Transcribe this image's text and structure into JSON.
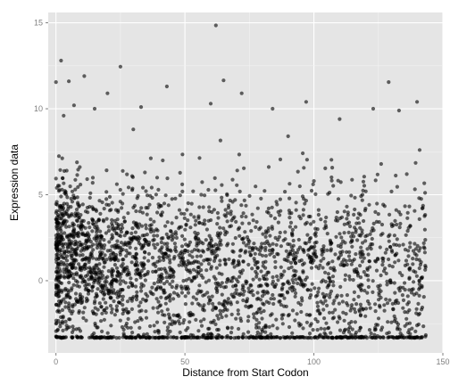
{
  "chart_data": {
    "type": "scatter",
    "xlabel": "Distance from Start Codon",
    "ylabel": "Expression data",
    "xlim": [
      -3,
      150
    ],
    "ylim": [
      -4.2,
      15.6
    ],
    "x_ticks": [
      0,
      50,
      100,
      150
    ],
    "x_tick_labels": [
      "0",
      "50",
      "100",
      "150"
    ],
    "y_ticks": [
      0,
      5,
      10,
      15
    ],
    "y_tick_labels": [
      "0",
      "5",
      "10",
      "15"
    ],
    "grid": true,
    "legend": "none",
    "colors": {
      "panel": "#e5e5e5",
      "grid": "#ffffff",
      "point": "#000000"
    },
    "point_alpha": 0.6,
    "series": [
      {
        "distribution": "dense cloud, densest for distance 0–35, thinning toward 143",
        "points": [
          [
            62,
            14.85
          ],
          [
            2,
            12.8
          ],
          [
            25,
            12.45
          ],
          [
            0,
            11.55
          ],
          [
            5,
            11.6
          ],
          [
            11,
            11.9
          ],
          [
            65,
            11.65
          ],
          [
            129,
            11.55
          ],
          [
            43,
            11.3
          ],
          [
            20,
            10.9
          ],
          [
            72,
            10.9
          ],
          [
            97,
            10.4
          ],
          [
            140,
            10.4
          ],
          [
            7,
            10.2
          ],
          [
            15,
            10.0
          ],
          [
            33,
            10.1
          ],
          [
            60,
            10.3
          ],
          [
            84,
            10.0
          ],
          [
            123,
            10.0
          ],
          [
            133,
            9.9
          ],
          [
            3,
            9.6
          ],
          [
            110,
            9.4
          ],
          [
            30,
            8.8
          ],
          [
            90,
            8.4
          ],
          [
            141,
            7.6
          ],
          [
            136,
            6.2
          ],
          [
            100,
            5.8
          ],
          [
            142,
            4.2
          ],
          [
            142,
            0.2
          ],
          [
            140,
            -2.6
          ],
          [
            48,
            -2.5
          ]
        ]
      },
      {
        "name": "",
        "floor_value": -3.3,
        "x_range": [
          0,
          143
        ],
        "description": "row of points at the lower detection limit"
      }
    ]
  }
}
